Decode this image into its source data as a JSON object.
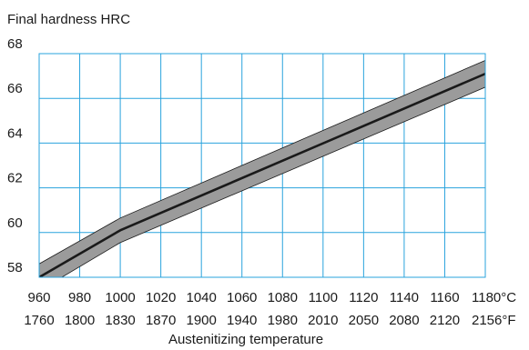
{
  "chart_data": {
    "type": "area",
    "title": "Final hardness HRC",
    "xlabel": "Austenitizing temperature",
    "x_ticks_c": [
      "960",
      "980",
      "1000",
      "1020",
      "1040",
      "1060",
      "1080",
      "1100",
      "1120",
      "1140",
      "1160",
      "1180°C"
    ],
    "x_ticks_f": [
      "1760",
      "1800",
      "1830",
      "1870",
      "1900",
      "1940",
      "1980",
      "2010",
      "2050",
      "2080",
      "2120",
      "2156°F"
    ],
    "y_ticks": [
      "58",
      "60",
      "62",
      "64",
      "66",
      "68"
    ],
    "xlim": [
      960,
      1180
    ],
    "ylim": [
      58,
      68
    ],
    "grid": true,
    "colors": {
      "grid": "#29a3dd",
      "band": "#9b9b9b",
      "line": "#1a1a1a"
    },
    "series": [
      {
        "x": [
          960,
          1000,
          1180
        ],
        "values": [
          58.0,
          60.1,
          67.1
        ]
      },
      {
        "x": [
          960,
          1000,
          1180
        ],
        "values": [
          58.6,
          60.65,
          67.7
        ]
      },
      {
        "x": [
          960,
          1000,
          1180
        ],
        "values": [
          57.4,
          59.55,
          66.5
        ]
      }
    ]
  }
}
